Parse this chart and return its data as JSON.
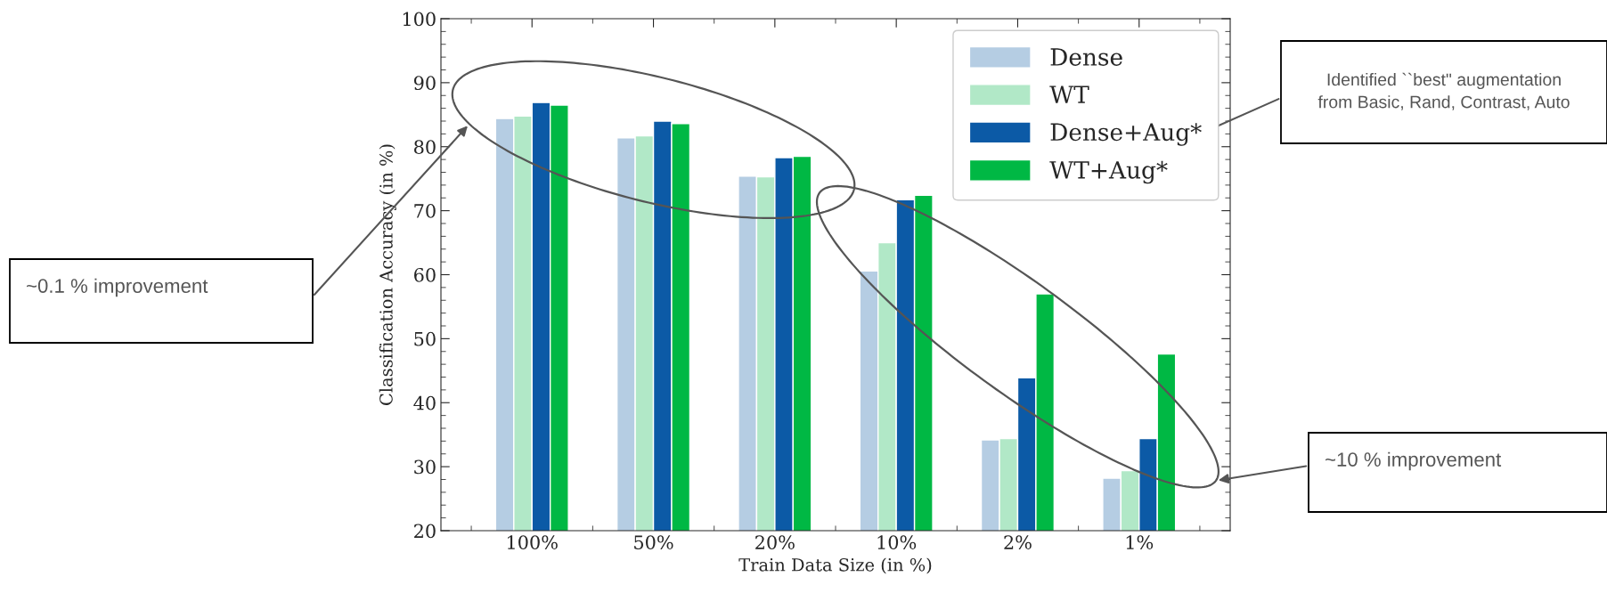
{
  "chart_data": {
    "type": "bar",
    "xlabel": "Train Data Size (in %)",
    "ylabel": "Classification Accuracy (in %)",
    "categories": [
      "100%",
      "50%",
      "20%",
      "10%",
      "2%",
      "1%"
    ],
    "series": [
      {
        "name": "Dense",
        "color": "#b5cde3",
        "values": [
          84.4,
          81.4,
          75.4,
          60.6,
          34.2,
          28.2
        ]
      },
      {
        "name": "WT",
        "color": "#b1e8c7",
        "values": [
          84.8,
          81.7,
          75.3,
          65.0,
          34.4,
          29.4
        ]
      },
      {
        "name": "Dense+Aug*",
        "color": "#0c5aa6",
        "values": [
          86.9,
          84.0,
          78.3,
          71.7,
          43.9,
          34.4
        ]
      },
      {
        "name": "WT+Aug*",
        "color": "#00b844",
        "values": [
          86.5,
          83.6,
          78.5,
          72.4,
          57.0,
          47.6
        ]
      }
    ],
    "ylim": [
      20,
      100
    ],
    "yticks": [
      20,
      30,
      40,
      50,
      60,
      70,
      80,
      90,
      100
    ],
    "legend": "top right",
    "grid": false,
    "annotations": [
      "~0.1 % improvement",
      "Identified ``best\" augmentation from Basic, Rand, Contrast, Auto",
      "~10 % improvement"
    ]
  }
}
